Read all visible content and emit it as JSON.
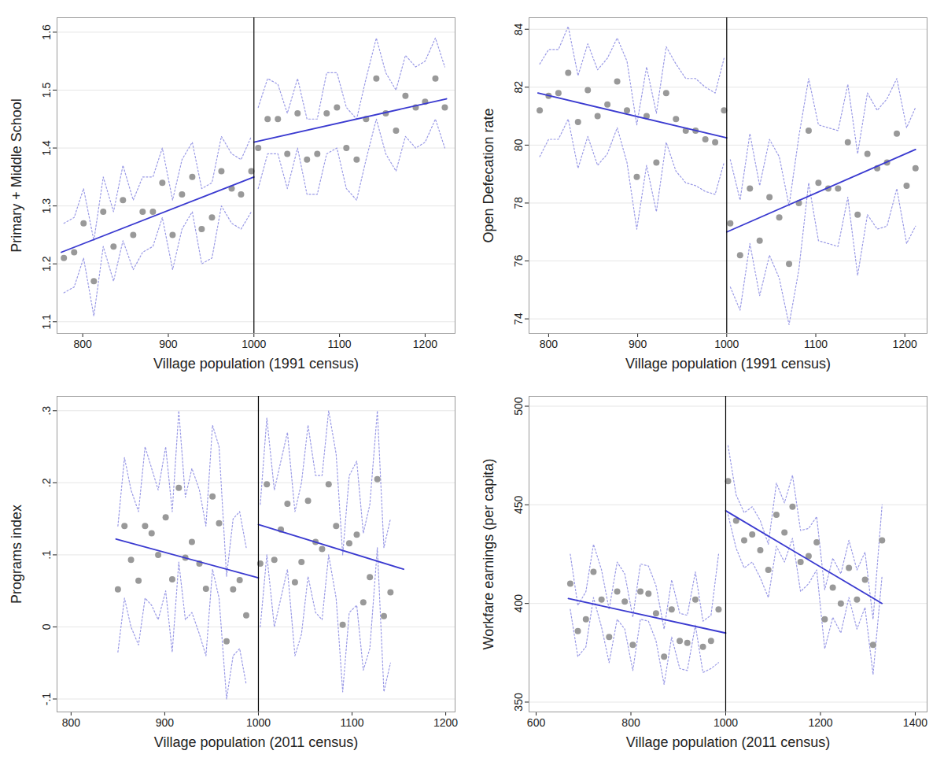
{
  "chart_data": [
    {
      "type": "scatter",
      "x_label": "Village population (1991 census)",
      "y_label": "Primary + Middle School",
      "xlim": [
        770,
        1235
      ],
      "xticks": [
        800,
        900,
        1000,
        1100,
        1200
      ],
      "ylim": [
        1.08,
        1.625
      ],
      "yticks": [
        1.1,
        1.2,
        1.3,
        1.4,
        1.5,
        1.6
      ],
      "grid": true,
      "cutoff": 1000,
      "series": [
        {
          "type": "scatter",
          "color": "#999999",
          "x": [
            778,
            790,
            801,
            813,
            824,
            836,
            847,
            859,
            870,
            882,
            893,
            905,
            916,
            928,
            939,
            951,
            962,
            974,
            985,
            997
          ],
          "values": [
            1.21,
            1.22,
            1.27,
            1.17,
            1.29,
            1.23,
            1.31,
            1.25,
            1.29,
            1.29,
            1.34,
            1.25,
            1.32,
            1.35,
            1.26,
            1.28,
            1.36,
            1.33,
            1.32,
            1.36
          ],
          "ci_upper": [
            1.27,
            1.28,
            1.33,
            1.24,
            1.35,
            1.29,
            1.37,
            1.31,
            1.35,
            1.35,
            1.4,
            1.31,
            1.38,
            1.41,
            1.33,
            1.34,
            1.42,
            1.39,
            1.38,
            1.42
          ],
          "ci_lower": [
            1.15,
            1.16,
            1.21,
            1.11,
            1.23,
            1.17,
            1.24,
            1.19,
            1.22,
            1.23,
            1.28,
            1.19,
            1.26,
            1.29,
            1.2,
            1.21,
            1.3,
            1.27,
            1.26,
            1.29
          ]
        },
        {
          "type": "scatter",
          "color": "#999999",
          "x": [
            1005,
            1016,
            1028,
            1039,
            1051,
            1062,
            1074,
            1085,
            1097,
            1108,
            1120,
            1131,
            1143,
            1154,
            1166,
            1177,
            1189,
            1200,
            1212,
            1223
          ],
          "values": [
            1.4,
            1.45,
            1.45,
            1.39,
            1.46,
            1.38,
            1.39,
            1.46,
            1.47,
            1.4,
            1.38,
            1.45,
            1.52,
            1.46,
            1.43,
            1.49,
            1.47,
            1.48,
            1.52,
            1.47
          ],
          "ci_upper": [
            1.47,
            1.52,
            1.51,
            1.46,
            1.52,
            1.45,
            1.45,
            1.53,
            1.53,
            1.47,
            1.45,
            1.52,
            1.59,
            1.53,
            1.5,
            1.56,
            1.54,
            1.55,
            1.59,
            1.54
          ],
          "ci_lower": [
            1.33,
            1.39,
            1.39,
            1.33,
            1.4,
            1.32,
            1.32,
            1.39,
            1.4,
            1.33,
            1.31,
            1.38,
            1.45,
            1.39,
            1.36,
            1.42,
            1.4,
            1.41,
            1.45,
            1.4
          ]
        },
        {
          "type": "line",
          "color": "#3a3ad0",
          "x": [
            775,
            1000
          ],
          "values": [
            1.22,
            1.35
          ]
        },
        {
          "type": "line",
          "color": "#3a3ad0",
          "x": [
            1000,
            1225
          ],
          "values": [
            1.41,
            1.485
          ]
        }
      ]
    },
    {
      "type": "scatter",
      "x_label": "Village population (1991 census)",
      "y_label": "Open Defecation rate",
      "xlim": [
        778,
        1225
      ],
      "xticks": [
        800,
        900,
        1000,
        1100,
        1200
      ],
      "ylim": [
        73.5,
        84.4
      ],
      "yticks": [
        74,
        76,
        78,
        80,
        82,
        84
      ],
      "grid": true,
      "cutoff": 1000,
      "series": [
        {
          "type": "scatter",
          "color": "#999999",
          "x": [
            790,
            800,
            811,
            822,
            833,
            844,
            855,
            866,
            877,
            888,
            899,
            910,
            921,
            932,
            943,
            954,
            965,
            976,
            987,
            997
          ],
          "values": [
            81.2,
            81.7,
            81.8,
            82.5,
            80.8,
            81.9,
            81.0,
            81.4,
            82.2,
            81.2,
            78.9,
            81.0,
            79.4,
            81.8,
            80.9,
            80.5,
            80.5,
            80.2,
            80.1,
            81.2
          ],
          "ci_upper": [
            82.8,
            83.3,
            83.3,
            84.1,
            82.4,
            83.5,
            82.6,
            83.0,
            83.7,
            82.9,
            80.7,
            82.7,
            81.1,
            83.4,
            82.8,
            82.3,
            82.3,
            82.0,
            81.8,
            83.0
          ],
          "ci_lower": [
            79.6,
            80.2,
            80.2,
            80.9,
            79.2,
            80.3,
            79.3,
            79.7,
            80.6,
            79.4,
            77.1,
            79.3,
            77.7,
            80.1,
            79.1,
            78.7,
            78.6,
            78.4,
            78.3,
            79.4
          ]
        },
        {
          "type": "scatter",
          "color": "#999999",
          "x": [
            1004,
            1015,
            1026,
            1037,
            1048,
            1059,
            1070,
            1081,
            1092,
            1103,
            1114,
            1125,
            1136,
            1147,
            1158,
            1169,
            1180,
            1191,
            1202,
            1212
          ],
          "values": [
            77.3,
            76.2,
            78.5,
            76.7,
            78.2,
            77.5,
            75.9,
            78.0,
            80.5,
            78.7,
            78.5,
            78.5,
            80.1,
            77.6,
            79.7,
            79.2,
            79.4,
            80.4,
            78.6,
            79.2
          ],
          "ci_upper": [
            79.5,
            78.1,
            80.4,
            78.6,
            80.2,
            79.6,
            77.9,
            80.3,
            82.3,
            80.7,
            80.6,
            80.5,
            82.1,
            79.7,
            81.8,
            81.2,
            81.6,
            82.3,
            80.6,
            81.3
          ],
          "ci_lower": [
            75.1,
            74.3,
            76.6,
            74.8,
            76.2,
            75.4,
            73.8,
            75.7,
            78.7,
            76.7,
            76.6,
            76.5,
            78.2,
            75.5,
            77.6,
            77.1,
            77.2,
            78.5,
            76.6,
            77.2
          ]
        },
        {
          "type": "line",
          "color": "#3a3ad0",
          "x": [
            788,
            1000
          ],
          "values": [
            81.8,
            80.25
          ]
        },
        {
          "type": "line",
          "color": "#3a3ad0",
          "x": [
            1000,
            1212
          ],
          "values": [
            77.0,
            79.85
          ]
        }
      ]
    },
    {
      "type": "scatter",
      "x_label": "Village population (2011 census)",
      "y_label": "Programs index",
      "xlim": [
        785,
        1210
      ],
      "xticks": [
        800,
        900,
        1000,
        1100,
        1200
      ],
      "ylim": [
        -0.118,
        0.32
      ],
      "yticks": [
        {
          "value": -0.1,
          "label": "-.1"
        },
        0,
        {
          "value": 0.1,
          "label": ".1"
        },
        {
          "value": 0.2,
          "label": ".2"
        },
        {
          "value": 0.3,
          "label": ".3"
        }
      ],
      "grid": true,
      "cutoff": 1000,
      "series": [
        {
          "type": "scatter",
          "color": "#999999",
          "x": [
            850,
            857,
            864,
            872,
            879,
            886,
            893,
            901,
            908,
            915,
            922,
            929,
            937,
            944,
            951,
            958,
            966,
            973,
            980,
            987
          ],
          "values": [
            0.052,
            0.14,
            0.093,
            0.064,
            0.14,
            0.13,
            0.1,
            0.152,
            0.066,
            0.193,
            0.096,
            0.118,
            0.088,
            0.053,
            0.181,
            0.144,
            -0.02,
            0.052,
            0.065,
            0.016
          ],
          "ci_upper": [
            0.14,
            0.235,
            0.19,
            0.16,
            0.25,
            0.22,
            0.19,
            0.25,
            0.16,
            0.3,
            0.18,
            0.22,
            0.19,
            0.14,
            0.28,
            0.25,
            0.07,
            0.15,
            0.16,
            0.11
          ],
          "ci_lower": [
            -0.035,
            0.04,
            0,
            -0.025,
            0.04,
            0.03,
            0.01,
            0.05,
            -0.035,
            0.09,
            0.01,
            0.02,
            -0.01,
            -0.04,
            0.08,
            0.04,
            -0.1,
            -0.04,
            -0.03,
            -0.08
          ]
        },
        {
          "type": "scatter",
          "color": "#999999",
          "x": [
            1002,
            1009,
            1017,
            1024,
            1031,
            1039,
            1046,
            1053,
            1061,
            1068,
            1075,
            1083,
            1090,
            1097,
            1105,
            1112,
            1119,
            1127,
            1134,
            1141
          ],
          "values": [
            0.088,
            0.198,
            0.093,
            0.135,
            0.171,
            0.062,
            0.09,
            0.175,
            0.118,
            0.108,
            0.198,
            0.14,
            0.003,
            0.116,
            0.128,
            0.034,
            0.069,
            0.205,
            0.015,
            0.048
          ],
          "ci_upper": [
            0.17,
            0.29,
            0.19,
            0.23,
            0.27,
            0.16,
            0.2,
            0.28,
            0.21,
            0.21,
            0.3,
            0.24,
            0.1,
            0.21,
            0.23,
            0.13,
            0.17,
            0.3,
            0.11,
            0.15
          ],
          "ci_lower": [
            0,
            0.1,
            0,
            0.04,
            0.08,
            -0.04,
            -0.01,
            0.07,
            0.02,
            0.01,
            0.1,
            0.04,
            -0.09,
            0.02,
            0.03,
            -0.06,
            -0.03,
            0.11,
            -0.09,
            -0.05
          ]
        },
        {
          "type": "line",
          "color": "#3a3ad0",
          "x": [
            848,
            1000
          ],
          "values": [
            0.122,
            0.068
          ]
        },
        {
          "type": "line",
          "color": "#3a3ad0",
          "x": [
            1000,
            1155
          ],
          "values": [
            0.142,
            0.08
          ]
        }
      ]
    },
    {
      "type": "scatter",
      "x_label": "Village population (2011 census)",
      "y_label": "Workfare earnings (per capita)",
      "xlim": [
        585,
        1425
      ],
      "xticks": [
        600,
        800,
        1000,
        1200,
        1400
      ],
      "ylim": [
        345,
        505
      ],
      "yticks": [
        350,
        400,
        450,
        500
      ],
      "grid": true,
      "cutoff": 1000,
      "series": [
        {
          "type": "scatter",
          "color": "#999999",
          "x": [
            672,
            688,
            705,
            721,
            738,
            754,
            771,
            787,
            804,
            820,
            837,
            853,
            870,
            886,
            903,
            919,
            936,
            952,
            969,
            985
          ],
          "values": [
            410,
            386,
            392,
            416,
            402,
            383,
            406,
            401,
            379,
            406,
            405,
            395,
            373,
            397,
            381,
            380,
            402,
            378,
            381,
            397
          ],
          "ci_upper": [
            425,
            399,
            406,
            430,
            417,
            397,
            421,
            415,
            393,
            420,
            419,
            409,
            387,
            412,
            395,
            394,
            416,
            391,
            394,
            425
          ],
          "ci_lower": [
            397,
            373,
            378,
            403,
            388,
            370,
            392,
            387,
            366,
            392,
            391,
            381,
            359,
            383,
            367,
            366,
            389,
            365,
            367,
            370
          ]
        },
        {
          "type": "scatter",
          "color": "#999999",
          "x": [
            1005,
            1022,
            1039,
            1056,
            1073,
            1090,
            1107,
            1124,
            1141,
            1158,
            1175,
            1192,
            1209,
            1226,
            1243,
            1260,
            1277,
            1294,
            1311,
            1330
          ],
          "values": [
            462,
            442,
            432,
            435,
            427,
            417,
            445,
            436,
            449,
            421,
            424,
            431,
            392,
            408,
            400,
            418,
            402,
            412,
            379,
            432
          ],
          "ci_upper": [
            480,
            455,
            446,
            449,
            442,
            430,
            461,
            451,
            465,
            437,
            438,
            444,
            407,
            423,
            415,
            432,
            417,
            426,
            392,
            450
          ],
          "ci_lower": [
            445,
            428,
            418,
            421,
            413,
            403,
            429,
            421,
            433,
            406,
            410,
            417,
            377,
            393,
            385,
            403,
            387,
            398,
            364,
            414
          ]
        },
        {
          "type": "line",
          "color": "#3a3ad0",
          "x": [
            668,
            1000
          ],
          "values": [
            402.5,
            385
          ]
        },
        {
          "type": "line",
          "color": "#3a3ad0",
          "x": [
            1000,
            1330
          ],
          "values": [
            447,
            400
          ]
        }
      ]
    }
  ]
}
